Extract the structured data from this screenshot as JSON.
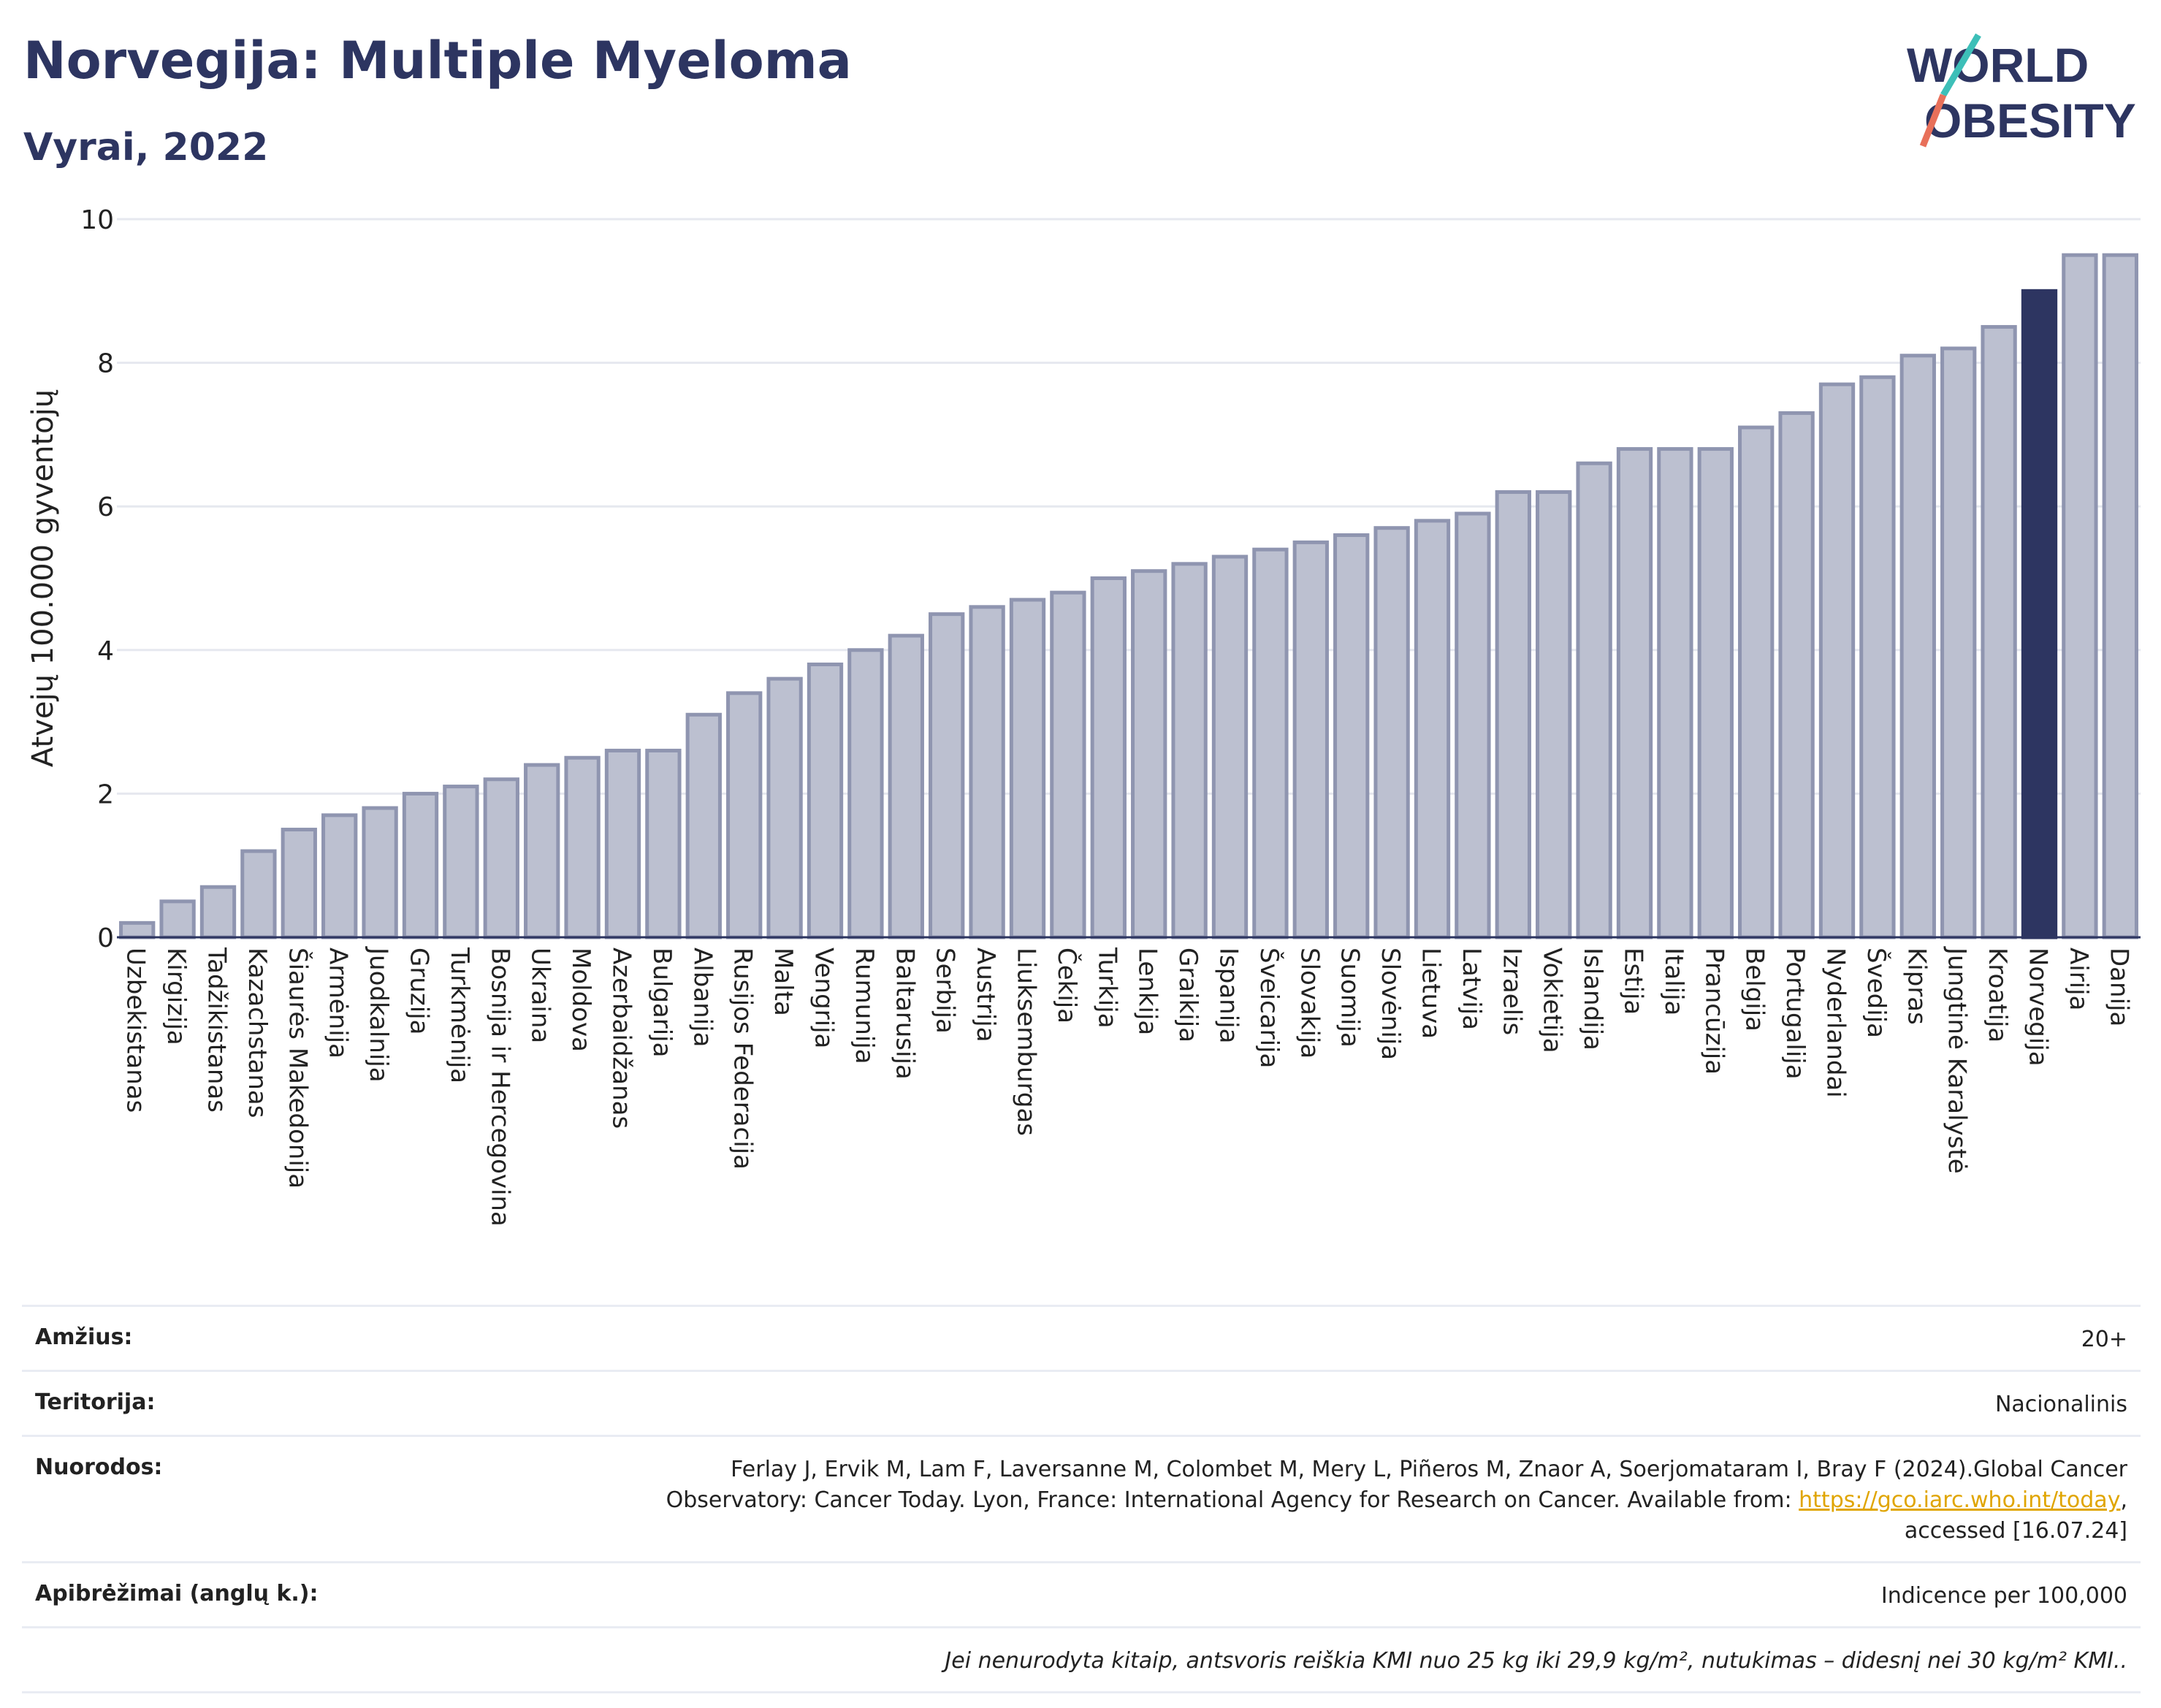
{
  "header": {
    "title": "Norvegija: Multiple Myeloma",
    "subtitle": "Vyrai, 2022",
    "logo_line1": "WORLD",
    "logo_line2": "OBESITY"
  },
  "colors": {
    "bar": "#bcc0d0",
    "bar_stroke": "#8f95b0",
    "highlight": "#2d3561",
    "grid": "#e6e8ef",
    "logo_slash_a": "#3dbfb8",
    "logo_slash_b": "#e8705a"
  },
  "chart_data": {
    "type": "bar",
    "ylabel": "Atvejų 100.000 gyventojų",
    "ylim": [
      0,
      10
    ],
    "yticks": [
      0,
      2,
      4,
      6,
      8,
      10
    ],
    "grid": true,
    "highlight_category": "Norvegija",
    "categories": [
      "Uzbekistanas",
      "Kirgizija",
      "Tadžikistanas",
      "Kazachstanas",
      "Šiaurės Makedonija",
      "Armėnija",
      "Juodkalnija",
      "Gruzija",
      "Turkmėnija",
      "Bosnija ir Hercegovina",
      "Ukraina",
      "Moldova",
      "Azerbaidžanas",
      "Bulgarija",
      "Albanija",
      "Rusijos Federacija",
      "Malta",
      "Vengrija",
      "Rumunija",
      "Baltarusija",
      "Serbija",
      "Austrija",
      "Liuksemburgas",
      "Čekija",
      "Turkija",
      "Lenkija",
      "Graikija",
      "Ispanija",
      "Šveicarija",
      "Slovakija",
      "Suomija",
      "Slovėnija",
      "Lietuva",
      "Latvija",
      "Izraelis",
      "Vokietija",
      "Islandija",
      "Estija",
      "Italija",
      "Prancūzija",
      "Belgija",
      "Portugalija",
      "Nyderlandai",
      "Švedija",
      "Kipras",
      "Jungtinė Karalystė",
      "Kroatija",
      "Norvegija",
      "Airija",
      "Danija"
    ],
    "values": [
      0.2,
      0.5,
      0.7,
      1.2,
      1.5,
      1.7,
      1.8,
      2.0,
      2.1,
      2.2,
      2.4,
      2.5,
      2.6,
      2.6,
      3.1,
      3.4,
      3.6,
      3.8,
      4.0,
      4.2,
      4.5,
      4.6,
      4.7,
      4.8,
      5.0,
      5.1,
      5.2,
      5.3,
      5.4,
      5.5,
      5.6,
      5.7,
      5.8,
      5.9,
      6.2,
      6.2,
      6.6,
      6.8,
      6.8,
      6.8,
      7.1,
      7.3,
      7.7,
      7.8,
      8.1,
      8.2,
      8.5,
      9.0,
      9.5,
      9.5
    ]
  },
  "meta": {
    "age_label": "Amžius:",
    "age_value": "20+",
    "territory_label": "Teritorija:",
    "territory_value": "Nacionalinis",
    "refs_label": "Nuorodos:",
    "refs_text1": "Ferlay J, Ervik M, Lam F, Laversanne M, Colombet M, Mery L, Piñeros M, Znaor A, Soerjomataram I, Bray F (2024).Global Cancer",
    "refs_text2": "Observatory: Cancer Today. Lyon, France: International Agency for Research on Cancer. Available from: ",
    "refs_link": "https://gco.iarc.who.int/today",
    "refs_text3": ",",
    "refs_text4": "accessed [16.07.24]",
    "defs_label": "Apibrėžimai (anglų k.):",
    "defs_value": "Indicence per 100,000",
    "note": "Jei nenurodyta kitaip, antsvoris reiškia KMI nuo 25 kg iki 29,9 kg/m², nutukimas – didesnį nei 30 kg/m² KMI.."
  }
}
